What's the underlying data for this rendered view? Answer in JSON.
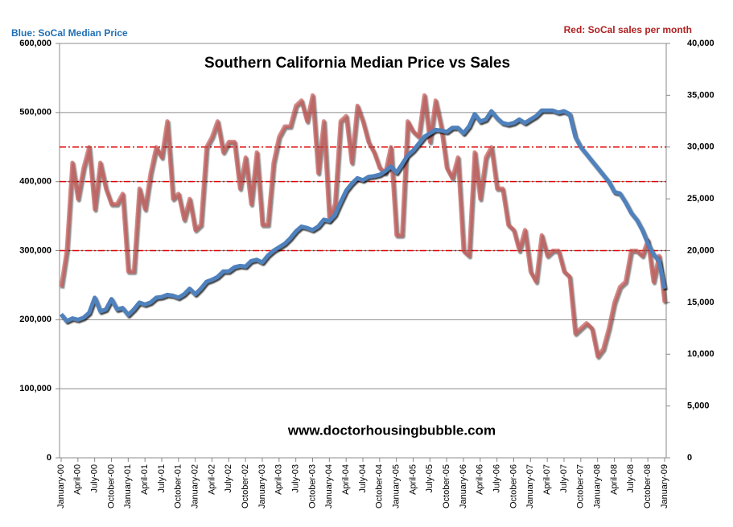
{
  "chart_data": {
    "type": "line",
    "title": "Southern California Median Price vs Sales",
    "annotation": "www.doctorhousingbubble.com",
    "categories": [
      "January-00",
      null,
      null,
      "April-00",
      null,
      null,
      "July-00",
      null,
      null,
      "October-00",
      null,
      null,
      "January-01",
      null,
      null,
      "April-01",
      null,
      null,
      "July-01",
      null,
      null,
      "October-01",
      null,
      null,
      "January-02",
      null,
      null,
      "April-02",
      null,
      null,
      "July-02",
      null,
      null,
      "October-02",
      null,
      null,
      "January-03",
      null,
      null,
      "April-03",
      null,
      null,
      "July-03",
      null,
      null,
      "October-03",
      null,
      null,
      "January-04",
      null,
      null,
      "April-04",
      null,
      null,
      "July-04",
      null,
      null,
      "October-04",
      null,
      null,
      "January-05",
      null,
      null,
      "April-05",
      null,
      null,
      "July-05",
      null,
      null,
      "October-05",
      null,
      null,
      "January-06",
      null,
      null,
      "April-06",
      null,
      null,
      "July-06",
      null,
      null,
      "October-06",
      null,
      null,
      "January-07",
      null,
      null,
      "April-07",
      null,
      null,
      "July-07",
      null,
      null,
      "October-07",
      null,
      null,
      "January-08",
      null,
      null,
      "April-08",
      null,
      null,
      "July-08",
      null,
      null,
      "October-08",
      null,
      null,
      "January-09"
    ],
    "series": [
      {
        "name": "Blue:  SoCal Median Price",
        "color": "#4f81bd",
        "axis": "y",
        "values": [
          208000,
          198000,
          202000,
          200000,
          203000,
          210000,
          232000,
          212000,
          215000,
          230000,
          215000,
          217000,
          207000,
          215000,
          225000,
          222000,
          225000,
          232000,
          233000,
          236000,
          235000,
          232000,
          237000,
          245000,
          237000,
          245000,
          255000,
          258000,
          262000,
          270000,
          270000,
          276000,
          278000,
          277000,
          285000,
          287000,
          283000,
          293000,
          300000,
          305000,
          310000,
          318000,
          328000,
          335000,
          333000,
          330000,
          335000,
          345000,
          343000,
          352000,
          370000,
          387000,
          397000,
          405000,
          402000,
          407000,
          408000,
          410000,
          415000,
          422000,
          413000,
          425000,
          438000,
          445000,
          455000,
          465000,
          470000,
          475000,
          474000,
          472000,
          478000,
          478000,
          470000,
          480000,
          498000,
          487000,
          490000,
          502000,
          492000,
          485000,
          483000,
          485000,
          490000,
          485000,
          490000,
          495000,
          503000,
          503000,
          503000,
          500000,
          502000,
          498000,
          465000,
          450000,
          440000,
          430000,
          420000,
          410000,
          400000,
          385000,
          383000,
          370000,
          355000,
          345000,
          330000,
          310000,
          295000,
          285000,
          245000
        ]
      },
      {
        "name": "Red:  SoCal sales per month",
        "color": "#c0504d",
        "axis": "y2",
        "values": [
          16500,
          20000,
          28500,
          25000,
          28000,
          30000,
          24000,
          28500,
          26000,
          24500,
          24500,
          25500,
          18000,
          18000,
          26000,
          24000,
          27500,
          30000,
          29000,
          32500,
          25000,
          25500,
          23000,
          25000,
          22000,
          22500,
          30000,
          31000,
          32500,
          29500,
          30500,
          30500,
          26000,
          29000,
          24500,
          29500,
          22500,
          22500,
          28500,
          31000,
          32000,
          32000,
          34000,
          34500,
          32500,
          35000,
          27500,
          32500,
          23000,
          24500,
          32500,
          33000,
          28500,
          34000,
          32500,
          30500,
          29500,
          28000,
          27500,
          30000,
          21500,
          21500,
          32500,
          31500,
          31000,
          35000,
          30500,
          34500,
          32000,
          28000,
          27000,
          29000,
          20000,
          19500,
          29500,
          25000,
          29000,
          30000,
          26000,
          26000,
          22500,
          22000,
          20000,
          22000,
          18000,
          17000,
          21500,
          19500,
          20000,
          20000,
          18000,
          17500,
          12000,
          12500,
          13000,
          12500,
          9800,
          10500,
          12500,
          15000,
          16500,
          17000,
          20000,
          20000,
          19500,
          21000,
          17000,
          19500,
          15000
        ]
      }
    ],
    "ylim": [
      0,
      600000
    ],
    "yticks": [
      0,
      {
        "value": 100000,
        "label": "100,000"
      },
      {
        "value": 200000,
        "label": "200,000"
      },
      {
        "value": 300000,
        "label": "300,000"
      },
      {
        "value": 400000,
        "label": "400,000"
      },
      {
        "value": 500000,
        "label": "500,000"
      },
      {
        "value": 600000,
        "label": "600,000"
      }
    ],
    "y2lim": [
      0,
      40000
    ],
    "y2ticks": [
      0,
      {
        "value": 5000,
        "label": "5,000"
      },
      {
        "value": 10000,
        "label": "10,000"
      },
      {
        "value": 15000,
        "label": "15,000"
      },
      {
        "value": 20000,
        "label": "20,000"
      },
      {
        "value": 25000,
        "label": "25,000"
      },
      {
        "value": 30000,
        "label": "30,000"
      },
      {
        "value": 35000,
        "label": "35,000"
      },
      {
        "value": 40000,
        "label": "40,000"
      }
    ],
    "grid": true,
    "reference_lines": {
      "values": [
        300000,
        400000,
        450000
      ],
      "color": "#e00000"
    }
  }
}
